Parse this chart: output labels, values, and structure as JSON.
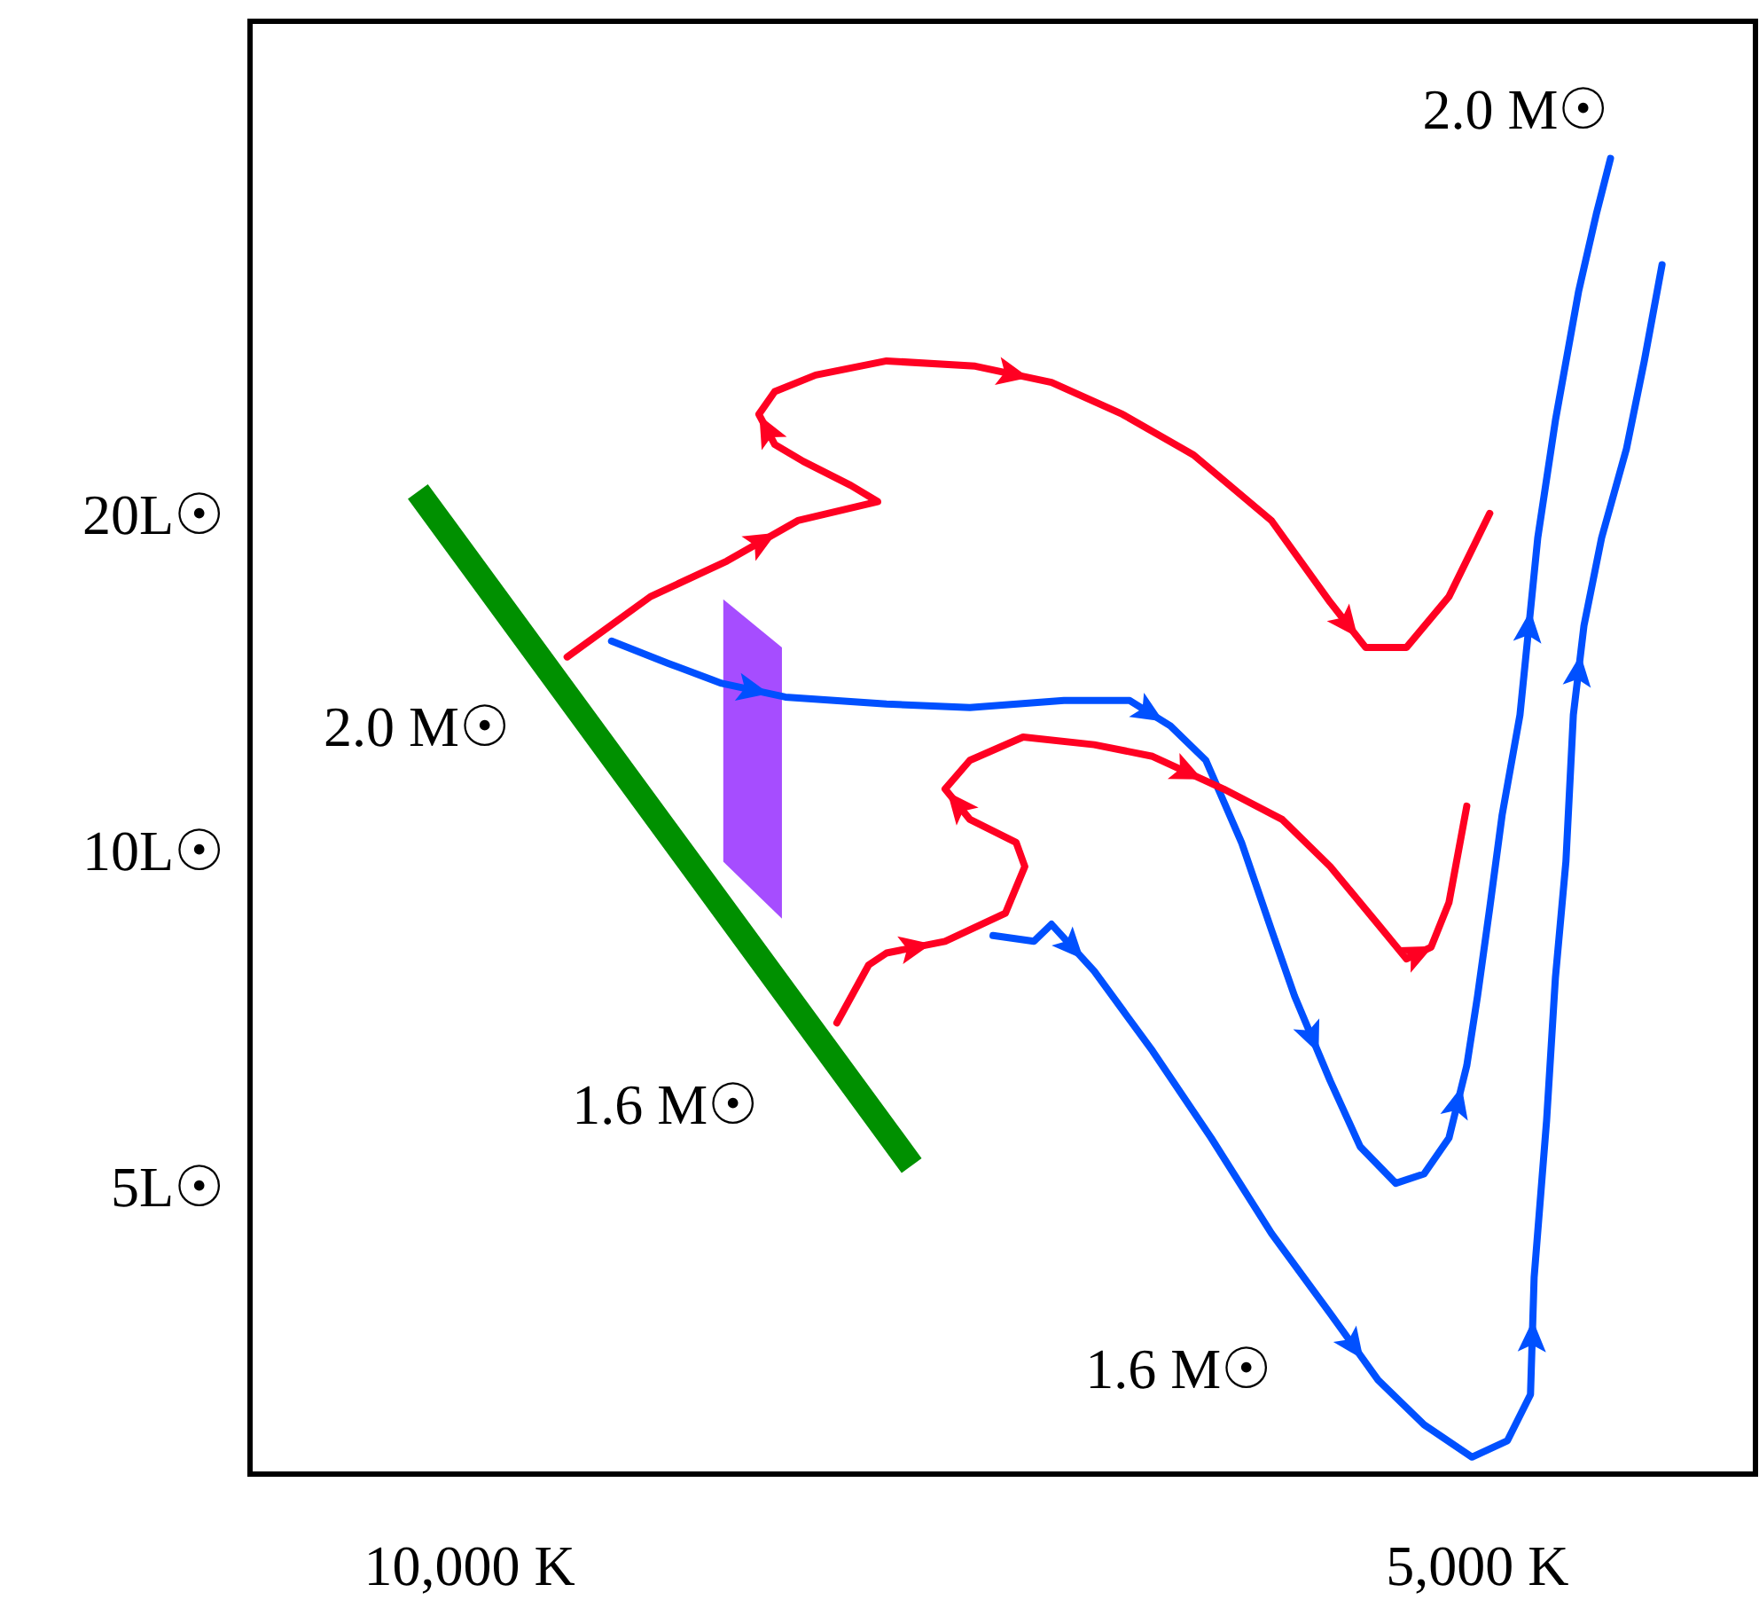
{
  "chart_data": {
    "type": "line",
    "log": "xy",
    "xlim": [
      11630,
      4130
    ],
    "ylim": [
      2.8,
      56
    ],
    "xticks": [
      {
        "value": 10000,
        "label": "10,000 K"
      },
      {
        "value": 5000,
        "label": "5,000 K"
      }
    ],
    "yticks": [
      {
        "value": 5,
        "label": "5L☉"
      },
      {
        "value": 10,
        "label": "10L☉"
      },
      {
        "value": 20,
        "label": "20L☉"
      }
    ],
    "series": [
      {
        "color": "#009000",
        "x": [
          10310,
          7416
        ],
        "values": [
          20.8,
          5.4
        ]
      },
      {
        "type": "area",
        "color": "#a64dff",
        "x": [
          8399,
          8067
        ],
        "values": [
          null,
          null
        ],
        "lower": [
          9.9,
          8.8
        ],
        "upper": [
          17.0,
          15.4
        ]
      },
      {
        "color": "#ff0022",
        "x": [
          9351,
          8830,
          8378,
          7979,
          7553,
          7693,
          7950,
          8107,
          8196,
          8107,
          7882,
          7507,
          7063,
          6702,
          6382,
          6078,
          5761,
          5533,
          5400,
          5250,
          5099,
          4958
        ],
        "values": [
          15.1,
          17.1,
          18.4,
          20.0,
          20.8,
          21.5,
          22.6,
          23.4,
          24.9,
          26.1,
          27.0,
          27.8,
          27.5,
          26.6,
          24.9,
          22.9,
          20.0,
          16.9,
          15.4,
          15.4,
          17.1,
          20.3
        ]
      },
      {
        "color": "#0050ff",
        "x": [
          9070,
          8723,
          8409,
          8048,
          7507,
          7089,
          6645,
          6351,
          6176,
          6027,
          5881,
          5761,
          5670,
          5533,
          5420,
          5289,
          5187,
          5099,
          5037,
          5000,
          4958,
          4916,
          4856,
          4797,
          4739,
          4664,
          4608,
          4563
        ],
        "values": [
          15.6,
          14.9,
          14.3,
          13.9,
          13.7,
          13.6,
          13.8,
          13.8,
          13.1,
          12.2,
          10.3,
          8.6,
          7.5,
          6.3,
          5.5,
          5.1,
          5.2,
          5.6,
          6.5,
          7.5,
          9.0,
          10.9,
          13.4,
          19.3,
          24.6,
          32.1,
          37.6,
          42.2
        ]
      },
      {
        "color": "#ff0022",
        "x": [
          7768,
          7600,
          7507,
          7211,
          6918,
          6826,
          6867,
          7089,
          7211,
          7089,
          6834,
          6508,
          6252,
          5954,
          5719,
          5533,
          5354,
          5250,
          5162,
          5099,
          5037
        ],
        "values": [
          7.1,
          8.0,
          8.2,
          8.4,
          8.9,
          9.8,
          10.3,
          10.8,
          11.5,
          12.2,
          12.8,
          12.6,
          12.3,
          11.5,
          10.8,
          9.8,
          8.7,
          8.1,
          8.3,
          9.1,
          11.1
        ]
      },
      {
        "color": "#0050ff",
        "x": [
          6977,
          6784,
          6702,
          6508,
          6252,
          6005,
          5761,
          5533,
          5354,
          5187,
          5019,
          4898,
          4821,
          4809,
          4768,
          4739,
          4705,
          4681,
          4647,
          4591,
          4513,
          4458,
          4404
        ],
        "values": [
          8.5,
          8.4,
          8.7,
          7.9,
          6.7,
          5.6,
          4.6,
          3.9,
          3.4,
          3.1,
          2.9,
          3.0,
          3.3,
          4.2,
          5.8,
          7.8,
          9.9,
          13.4,
          16.1,
          19.3,
          23.2,
          27.8,
          33.9
        ]
      }
    ],
    "annotations": [
      "2.0 M☉",
      "2.0 M☉",
      "1.6 M☉",
      "1.6 M☉"
    ]
  }
}
